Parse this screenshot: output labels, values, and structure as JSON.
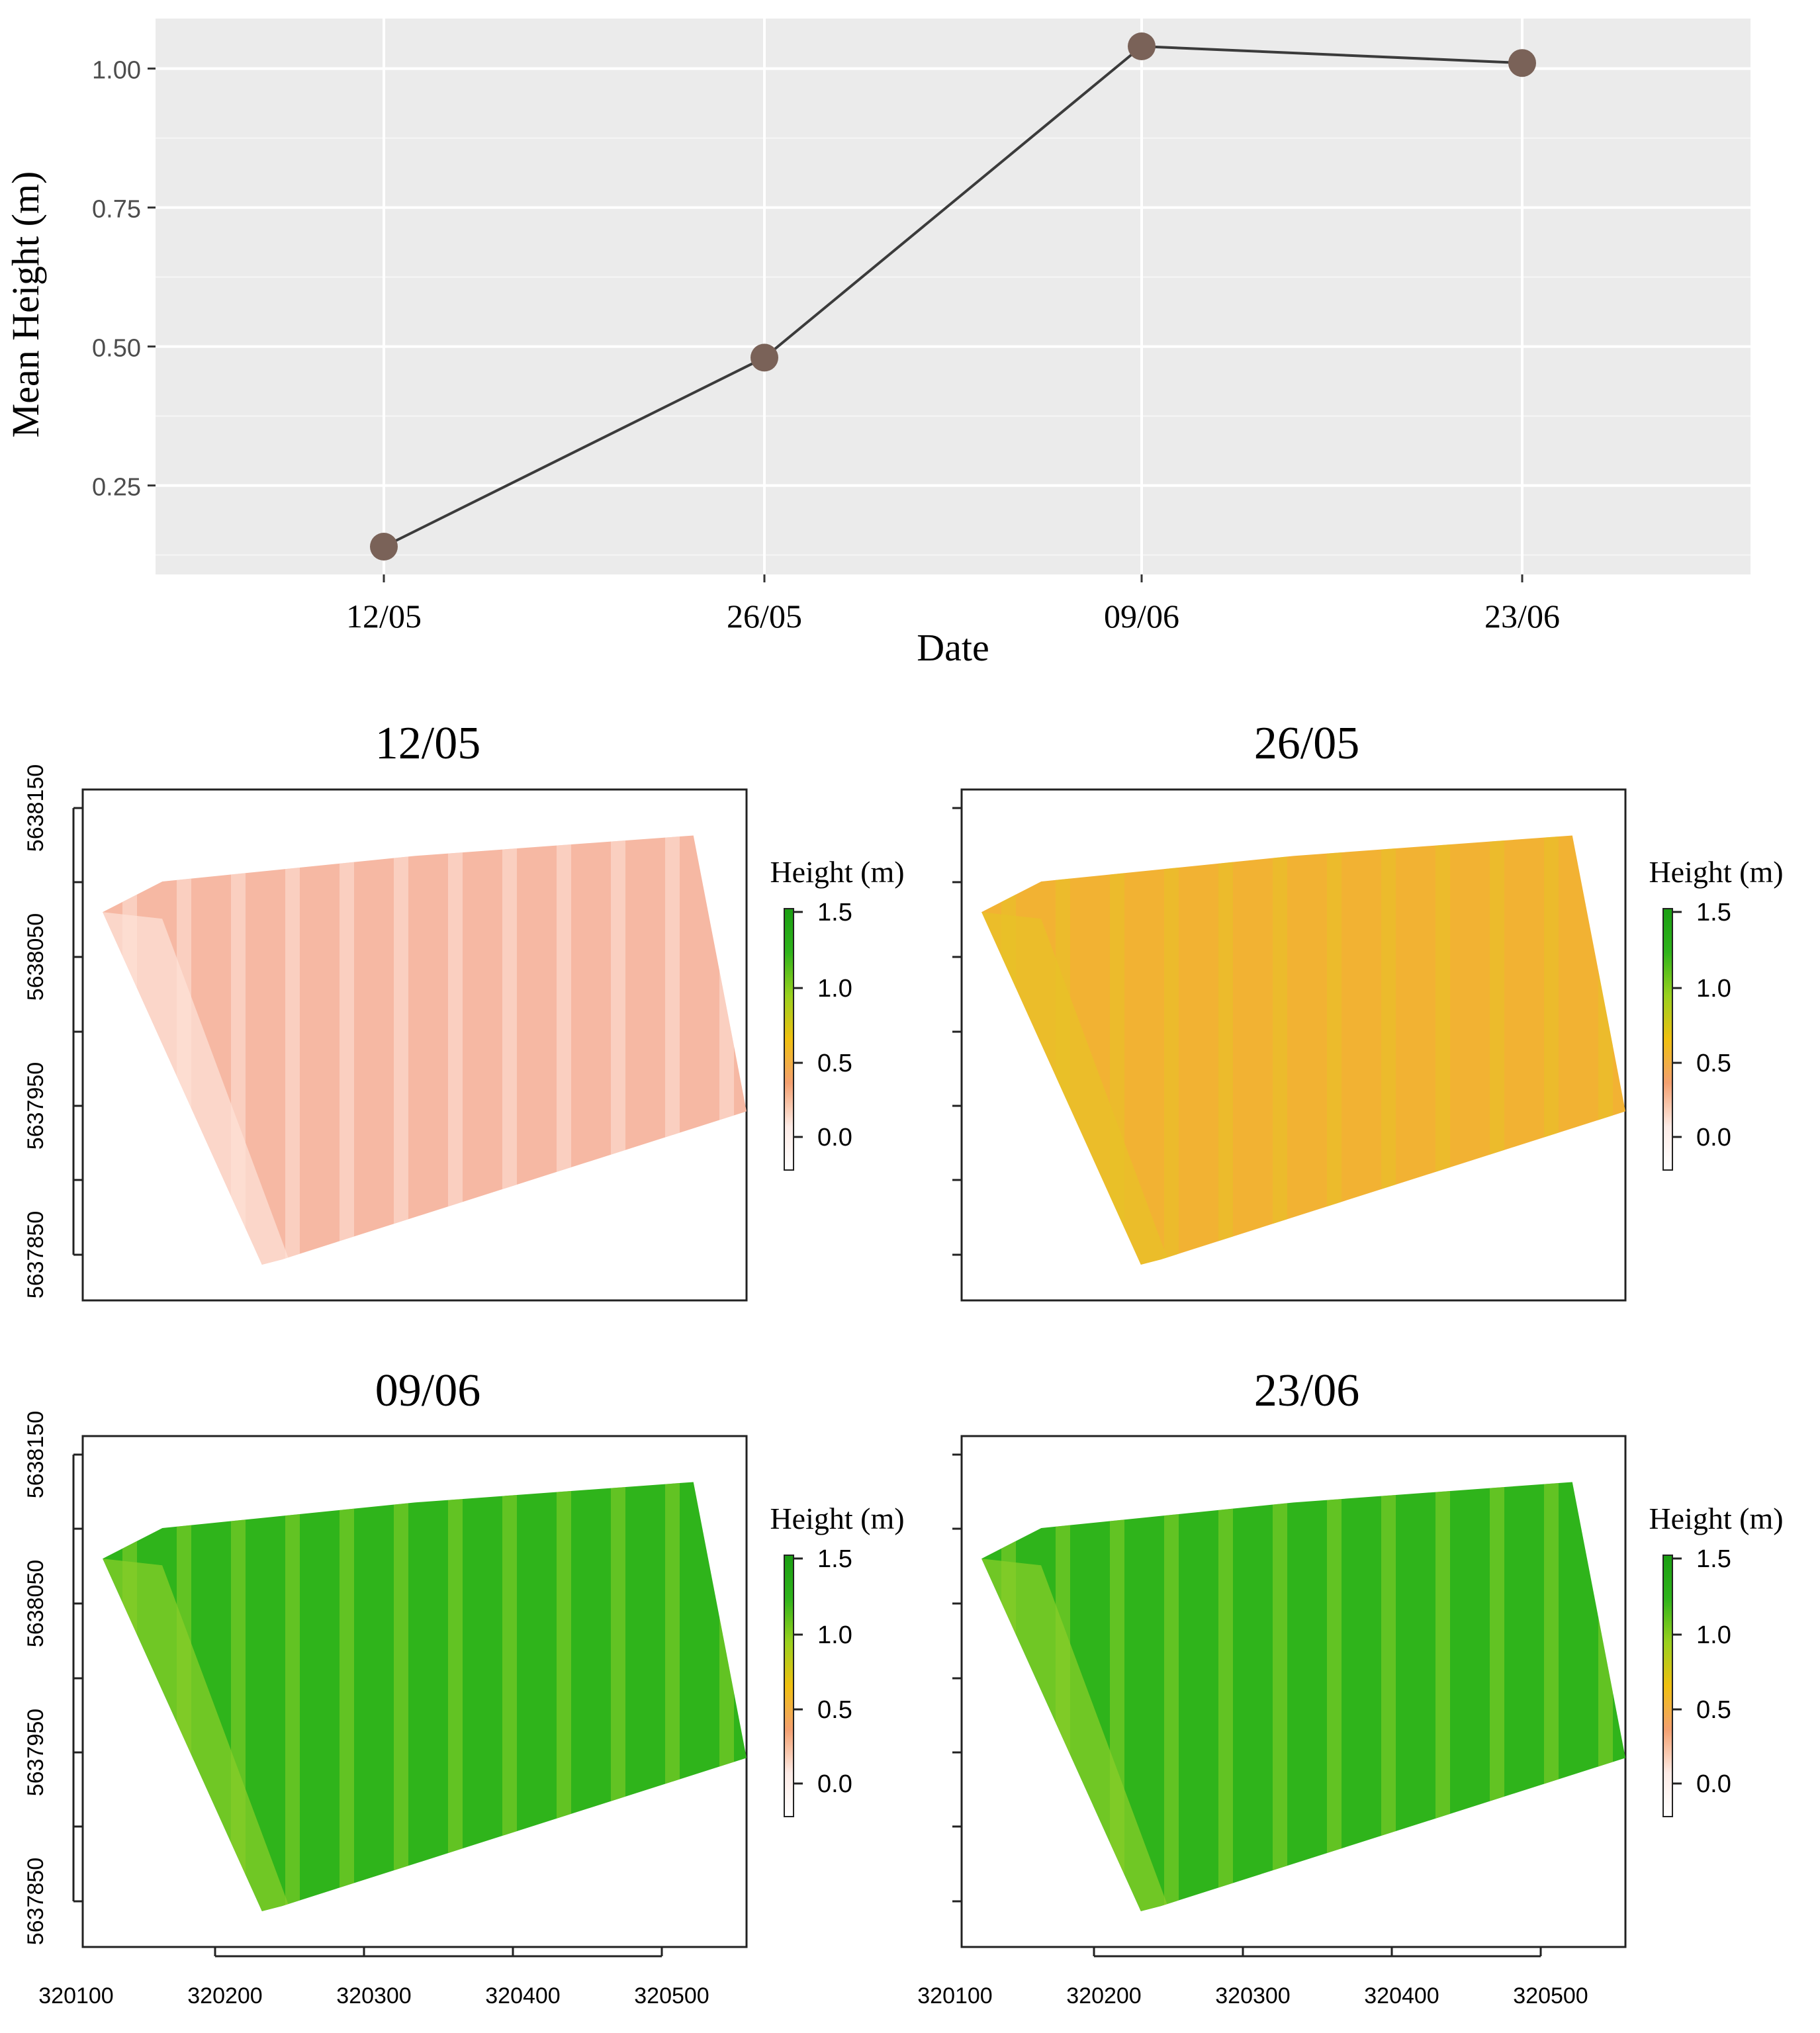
{
  "chart_data": [
    {
      "type": "line",
      "xlabel": "Date",
      "ylabel": "Mean Height  (m)",
      "categories": [
        "12/05",
        "26/05",
        "09/06",
        "23/06"
      ],
      "values": [
        0.14,
        0.48,
        1.04,
        1.01
      ],
      "yticks": [
        0.25,
        0.5,
        0.75,
        1.0
      ],
      "ytick_labels": [
        "0.25",
        "0.50",
        "0.75",
        "1.00"
      ],
      "ylim": [
        0.09,
        1.09
      ],
      "grid": true
    },
    {
      "type": "heatmap",
      "panels": [
        {
          "title": "12/05",
          "fill": "#f6b8a3",
          "stripe": "#fde2d8"
        },
        {
          "title": "26/05",
          "fill": "#f2b233",
          "stripe": "#e8c227"
        },
        {
          "title": "09/06",
          "fill": "#2fb41b",
          "stripe": "#8ccf29"
        },
        {
          "title": "23/06",
          "fill": "#2fb41b",
          "stripe": "#8ccf29"
        }
      ],
      "x_ticks": [
        "320100",
        "320200",
        "320300",
        "320400",
        "320500"
      ],
      "y_ticks": [
        "5638150",
        "5638050",
        "5637950",
        "5637850"
      ],
      "legend": {
        "title": "Height (m)",
        "ticks": [
          "1.5",
          "1.0",
          "0.5",
          "0.0"
        ],
        "colors": [
          "#1a9e12",
          "#2fb41b",
          "#9ad11e",
          "#f0c010",
          "#f4a070",
          "#fdebe6",
          "#ffffff"
        ]
      }
    }
  ]
}
